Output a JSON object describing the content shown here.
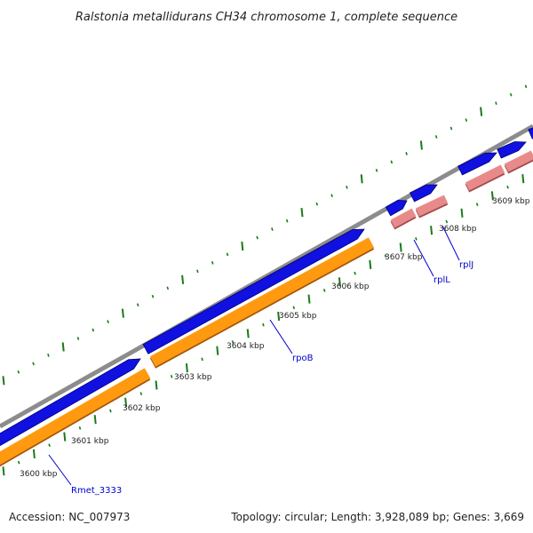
{
  "title": "Ralstonia metallidurans CH34 chromosome 1, complete sequence",
  "footer": {
    "accession": "Accession: NC_007973",
    "summary": "Topology: circular; Length: 3,928,089 bp; Genes: 3,669"
  },
  "colors": {
    "backbone": "#8c8c8c",
    "cds": "#1010e0",
    "gene": "#ff9a10",
    "rrna_like": "#e88a8a",
    "tick": "#1a7a1a",
    "label_line": "#0000cc"
  },
  "chart_data": {
    "type": "genome_map",
    "scale_unit": "kbp",
    "scale_labels": [
      "3600 kbp",
      "3601 kbp",
      "3602 kbp",
      "3603 kbp",
      "3604 kbp",
      "3605 kbp",
      "3606 kbp",
      "3607 kbp",
      "3608 kbp",
      "3609 kbp"
    ],
    "gene_labels": [
      "Rmet_3333",
      "rpoB",
      "rplL",
      "rplJ"
    ]
  }
}
